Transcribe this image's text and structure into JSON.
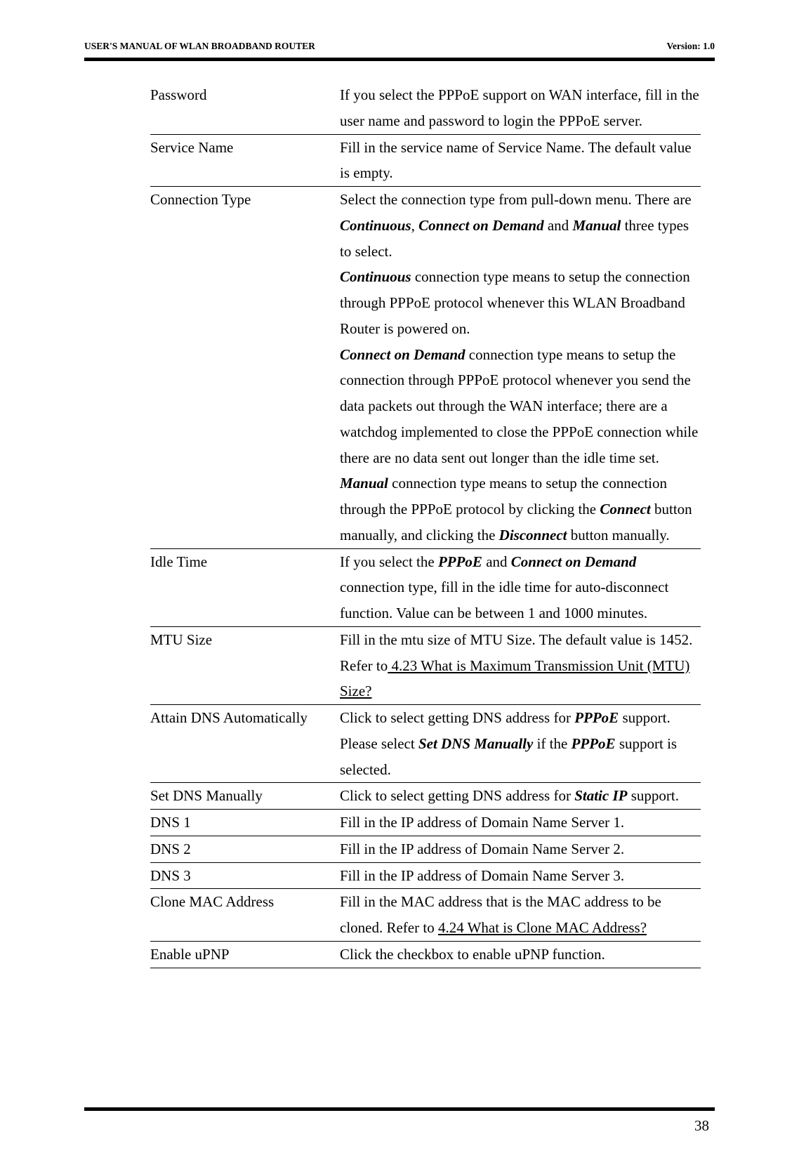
{
  "header": {
    "left": "USER'S MANUAL OF WLAN BROADBAND ROUTER",
    "right": "Version: 1.0"
  },
  "rows": [
    {
      "label": "Password",
      "desc": "If you select the PPPoE support on WAN interface, fill in the user name and password to login the PPPoE server."
    },
    {
      "label": "Service Name",
      "desc": "Fill in the service name of Service Name. The default value is empty."
    },
    {
      "label": "Connection Type",
      "html": "Select the connection type from pull-down menu. There are <span class=\"bi\">Continuous</span>, <span class=\"bi\">Connect on Demand</span> and <span class=\"bi\">Manual</span> three types to select.<br><span class=\"bi\">Continuous</span> connection type means to setup the connection through PPPoE protocol whenever this WLAN Broadband Router is powered on.<br><span class=\"bi\">Connect on Demand</span> connection type means to setup the connection through PPPoE protocol whenever you send the data packets out through the WAN interface; there are a watchdog implemented to close the PPPoE connection while there are no data sent out longer than the idle time set.<br><span class=\"bi\">Manual</span> connection type means to setup the connection through the PPPoE protocol by clicking the <span class=\"bi\">Connect</span> button manually, and clicking the <span class=\"bi\">Disconnect</span> button manually."
    },
    {
      "label": "Idle Time",
      "html": "If you select the <span class=\"bi\">PPPoE</span> and <span class=\"bi\">Connect on Demand</span> connection type, fill in the idle time for auto-disconnect function. Value can be between 1 and 1000 minutes."
    },
    {
      "label": "MTU Size",
      "html": "Fill in the mtu size of MTU Size. The default value is 1452. Refer to<span class=\"u\"> 4.23 What is Maximum Transmission Unit (MTU) Size?</span>"
    },
    {
      "label": "Attain DNS Automatically",
      "html": "Click to select getting DNS address for <span class=\"bi\">PPPoE</span> support. Please select <span class=\"bi\">Set DNS Manually</span> if the <span class=\"bi\">PPPoE</span> support is selected."
    },
    {
      "label": "Set DNS Manually",
      "html": "Click to select getting DNS address for <span class=\"bi\">Static IP</span> support."
    },
    {
      "label": "DNS 1",
      "desc": "Fill in the IP address of Domain Name Server 1."
    },
    {
      "label": "DNS 2",
      "desc": "Fill in the IP address of Domain Name Server 2."
    },
    {
      "label": "DNS 3",
      "desc": "Fill in the IP address of Domain Name Server 3."
    },
    {
      "label": "Clone MAC Address",
      "html": "Fill in the MAC address that is the MAC address to be cloned. Refer to <span class=\"u\">4.24 What is Clone MAC Address?</span>"
    },
    {
      "label": "Enable uPNP",
      "desc": "Click the checkbox to enable uPNP function."
    }
  ],
  "page_number": "38"
}
